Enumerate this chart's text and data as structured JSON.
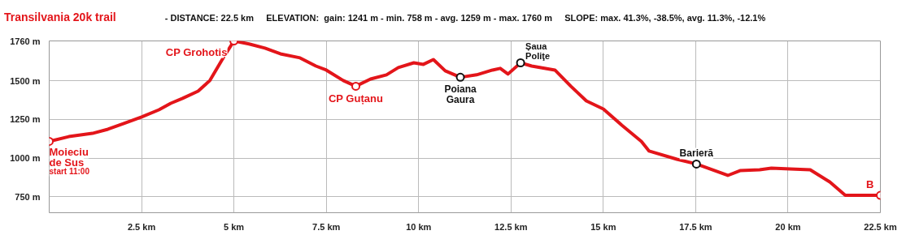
{
  "chart_data": {
    "type": "line",
    "title": "Transilvania 20k trail",
    "subtitle": "- DISTANCE: 22.5 km     ELEVATION:  gain: 1241 m - min. 758 m - avg. 1259 m - max. 1760 m     SLOPE: max. 41.3%, -38.5%, avg. 11.3%, -12.1%",
    "x": [
      0,
      0.53,
      1.17,
      1.59,
      2.02,
      2.5,
      2.97,
      3.29,
      3.61,
      4.03,
      4.35,
      4.67,
      5.0,
      5.41,
      5.84,
      6.26,
      6.79,
      7.22,
      7.5,
      7.96,
      8.3,
      8.7,
      9.13,
      9.45,
      9.87,
      10.13,
      10.4,
      10.72,
      11.13,
      11.57,
      12.0,
      12.21,
      12.42,
      12.76,
      13.06,
      13.69,
      14.12,
      14.54,
      15.0,
      15.5,
      16.03,
      16.24,
      16.99,
      17.52,
      18.37,
      18.7,
      19.23,
      19.55,
      20.06,
      20.6,
      21.13,
      21.55,
      22.5
    ],
    "series": [
      {
        "color": "#e3151a",
        "values": [
          1108,
          1139,
          1160,
          1187,
          1224,
          1266,
          1313,
          1355,
          1387,
          1434,
          1503,
          1634,
          1760,
          1740,
          1713,
          1676,
          1650,
          1597,
          1571,
          1503,
          1466,
          1513,
          1540,
          1587,
          1618,
          1608,
          1639,
          1566,
          1524,
          1540,
          1571,
          1582,
          1545,
          1618,
          1597,
          1571,
          1466,
          1371,
          1318,
          1213,
          1108,
          1045,
          992,
          961,
          887,
          918,
          924,
          934,
          929,
          924,
          845,
          758,
          758
        ]
      }
    ],
    "annotations": [
      {
        "text": "Moieciu\nde Sus\nstart 11:00",
        "x": 0,
        "y": 1108
      },
      {
        "text": "CP Grohotiș",
        "x": 5.0,
        "y": 1760
      },
      {
        "text": "CP Guțanu",
        "x": 8.3,
        "y": 1466
      },
      {
        "text": "Poiana\nGaura",
        "x": 11.13,
        "y": 1524
      },
      {
        "text": "Șaua\nPoliţe",
        "x": 12.76,
        "y": 1618
      },
      {
        "text": "Barieră",
        "x": 17.52,
        "y": 961
      },
      {
        "text": "B",
        "x": 22.5,
        "y": 758
      }
    ],
    "xlim": [
      0,
      22.5
    ],
    "ylim": [
      645,
      1760
    ],
    "xticks": [
      {
        "value": 2.5,
        "label": "2.5 km"
      },
      {
        "value": 5,
        "label": "5 km"
      },
      {
        "value": 7.5,
        "label": "7.5 km"
      },
      {
        "value": 10,
        "label": "10 km"
      },
      {
        "value": 12.5,
        "label": "12.5 km"
      },
      {
        "value": 15,
        "label": "15 km"
      },
      {
        "value": 17.5,
        "label": "17.5 km"
      },
      {
        "value": 20,
        "label": "20 km"
      },
      {
        "value": 22.5,
        "label": "22.5 km"
      }
    ],
    "yticks": [
      {
        "value": 750,
        "label": "750 m"
      },
      {
        "value": 1000,
        "label": "1000 m"
      },
      {
        "value": 1250,
        "label": "1250 m"
      },
      {
        "value": 1500,
        "label": "1500 m"
      },
      {
        "value": 1760,
        "label": "1760 m"
      }
    ],
    "grid": true
  }
}
